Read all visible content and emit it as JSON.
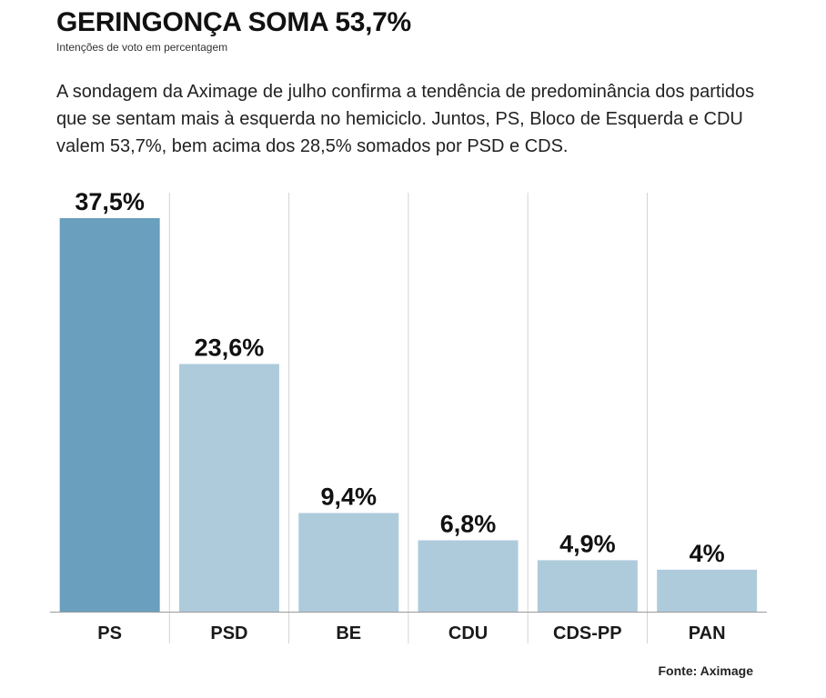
{
  "title": "GERINGONÇA SOMA 53,7%",
  "subtitle": "Intenções de voto em percentagem",
  "description": "A sondagem da Aximage de julho confirma a tendência de predominância dos partidos que se sentam mais à esquerda no hemiciclo. Juntos, PS, Bloco de Esquerda e CDU valem 53,7%, bem acima dos 28,5% somados por PSD e CDS.",
  "source": "Fonte: Aximage",
  "colors": {
    "highlight": "#6a9fbd",
    "bar": "#aecbdc",
    "separator": "#d4d4d4",
    "baseline": "#9a9a9a"
  },
  "chart_data": {
    "type": "bar",
    "title": "GERINGONÇA SOMA 53,7%",
    "ylabel": "Intenções de voto em percentagem",
    "categories": [
      "PS",
      "PSD",
      "BE",
      "CDU",
      "CDS-PP",
      "PAN"
    ],
    "values": [
      37.5,
      23.6,
      9.4,
      6.8,
      4.9,
      4
    ],
    "labels": [
      "37,5%",
      "23,6%",
      "9,4%",
      "6,8%",
      "4,9%",
      "4%"
    ],
    "highlight": [
      "PS"
    ],
    "ylim": [
      0,
      37.5
    ],
    "grid": false
  }
}
